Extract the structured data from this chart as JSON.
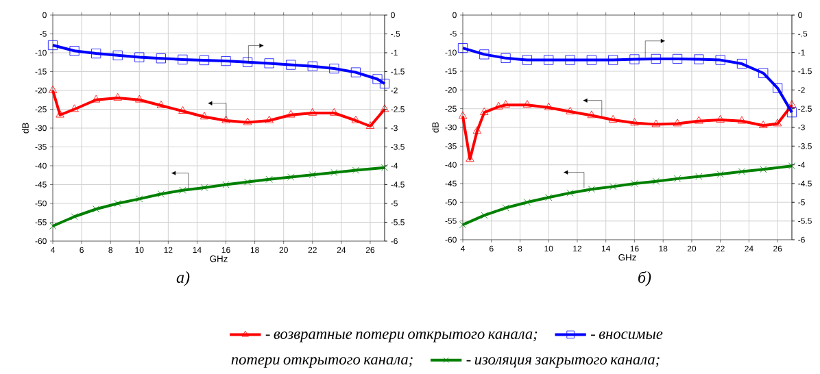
{
  "chart_data": [
    {
      "type": "line",
      "title": "а)",
      "xlabel": "GHz",
      "ylabel": "dB",
      "xlim": [
        4,
        27
      ],
      "xticks": [
        4,
        6,
        8,
        10,
        12,
        14,
        16,
        18,
        20,
        22,
        24,
        26
      ],
      "ylim": [
        -60,
        0
      ],
      "yticks": [
        -60,
        -55,
        -50,
        -45,
        -40,
        -35,
        -30,
        -25,
        -20,
        -15,
        -10,
        -5,
        0
      ],
      "y2lim": [
        -6,
        0
      ],
      "y2ticks": [
        -6,
        {
          "value": -5.5,
          "label": "-5.5"
        },
        -5,
        {
          "value": -4.5,
          "label": "-4.5"
        },
        -4,
        {
          "value": -3.5,
          "label": "-3.5"
        },
        -3,
        {
          "value": -2.5,
          "label": "-2.5"
        },
        -2,
        {
          "value": -1.5,
          "label": "-1.5"
        },
        -1,
        {
          "value": -0.5,
          "label": "-.5"
        },
        0
      ],
      "grid": true,
      "legend": "bottom",
      "series": [
        {
          "name": "- возвратные потери открытого канала;",
          "color": "#ff0000",
          "marker": "triangle",
          "x": [
            4,
            4.5,
            5.5,
            7,
            8.5,
            10,
            11.5,
            13,
            14.5,
            16,
            17.5,
            19,
            20.5,
            22,
            23.5,
            25,
            26,
            27
          ],
          "values": [
            -20,
            -26.5,
            -25,
            -22.5,
            -22,
            -22.5,
            -24,
            -25.5,
            -27,
            -28,
            -28.5,
            -28,
            -26.5,
            -26,
            -26,
            -28,
            -29.5,
            -25
          ]
        },
        {
          "name": "- вносимые потери открытого канала;",
          "color": "#0000ff",
          "marker": "square",
          "axis": "y2",
          "x": [
            4,
            5.5,
            7,
            8.5,
            10,
            11.5,
            13,
            14.5,
            16,
            17.5,
            19,
            20.5,
            22,
            23.5,
            25,
            26.5,
            27
          ],
          "values": [
            -0.8,
            -0.95,
            -1.02,
            -1.07,
            -1.12,
            -1.15,
            -1.18,
            -1.2,
            -1.22,
            -1.25,
            -1.28,
            -1.32,
            -1.36,
            -1.42,
            -1.52,
            -1.7,
            -1.82
          ]
        },
        {
          "name": "- изоляция закрытого канала;",
          "color": "#008000",
          "marker": "cross",
          "x": [
            4,
            5.5,
            7,
            8.5,
            10,
            11.5,
            13,
            14.5,
            16,
            17.5,
            19,
            20.5,
            22,
            23.5,
            25,
            27
          ],
          "values": [
            -56,
            -53.5,
            -51.5,
            -50,
            -48.8,
            -47.5,
            -46.5,
            -45.8,
            -45,
            -44.3,
            -43.6,
            -43,
            -42.4,
            -41.8,
            -41.2,
            -40.5
          ]
        }
      ]
    },
    {
      "type": "line",
      "title": "б)",
      "xlabel": "GHz",
      "ylabel": "dB",
      "xlim": [
        4,
        27
      ],
      "xticks": [
        4,
        6,
        8,
        10,
        12,
        14,
        16,
        18,
        20,
        22,
        24,
        26
      ],
      "ylim": [
        -60,
        0
      ],
      "yticks": [
        -60,
        -55,
        -50,
        -45,
        -40,
        -35,
        -30,
        -25,
        -20,
        -15,
        -10,
        -5,
        0
      ],
      "y2lim": [
        -6,
        0
      ],
      "y2ticks": [
        -6,
        {
          "value": -5.5,
          "label": "-5.5"
        },
        -5,
        {
          "value": -4.5,
          "label": "-4.5"
        },
        -4,
        {
          "value": -3.5,
          "label": "-3.5"
        },
        -3,
        {
          "value": -2.5,
          "label": "-2.5"
        },
        -2,
        {
          "value": -1.5,
          "label": "-1.5"
        },
        -1,
        {
          "value": -0.5,
          "label": "-.5"
        },
        0
      ],
      "grid": true,
      "series": [
        {
          "color": "#ff0000",
          "marker": "triangle",
          "x": [
            4,
            4.5,
            5,
            5.5,
            6.5,
            7,
            8.5,
            10,
            11.5,
            13,
            14.5,
            16,
            17.5,
            19,
            20.5,
            22,
            23.5,
            25,
            26,
            27
          ],
          "values": [
            -27,
            -38.5,
            -31,
            -26,
            -24.5,
            -24,
            -24,
            -24.7,
            -25.8,
            -26.8,
            -28,
            -28.8,
            -29.2,
            -29,
            -28.3,
            -28,
            -28.3,
            -29.5,
            -29,
            -24
          ]
        },
        {
          "color": "#0000ff",
          "marker": "square",
          "axis": "y2",
          "x": [
            4,
            5.5,
            7,
            8.5,
            10,
            11.5,
            13,
            14.5,
            16,
            17.5,
            19,
            20.5,
            22,
            23.5,
            25,
            26,
            27
          ],
          "values": [
            -0.88,
            -1.05,
            -1.15,
            -1.2,
            -1.2,
            -1.2,
            -1.2,
            -1.2,
            -1.18,
            -1.17,
            -1.17,
            -1.18,
            -1.2,
            -1.3,
            -1.55,
            -1.95,
            -2.6
          ]
        },
        {
          "color": "#008000",
          "marker": "cross",
          "x": [
            4,
            5.5,
            7,
            8.5,
            10,
            11.5,
            13,
            14.5,
            16,
            17.5,
            19,
            20.5,
            22,
            23.5,
            25,
            27
          ],
          "values": [
            -56,
            -53.5,
            -51.5,
            -50,
            -48.7,
            -47.5,
            -46.5,
            -45.8,
            -45,
            -44.4,
            -43.7,
            -43.1,
            -42.5,
            -41.8,
            -41.2,
            -40.3
          ]
        }
      ]
    }
  ]
}
